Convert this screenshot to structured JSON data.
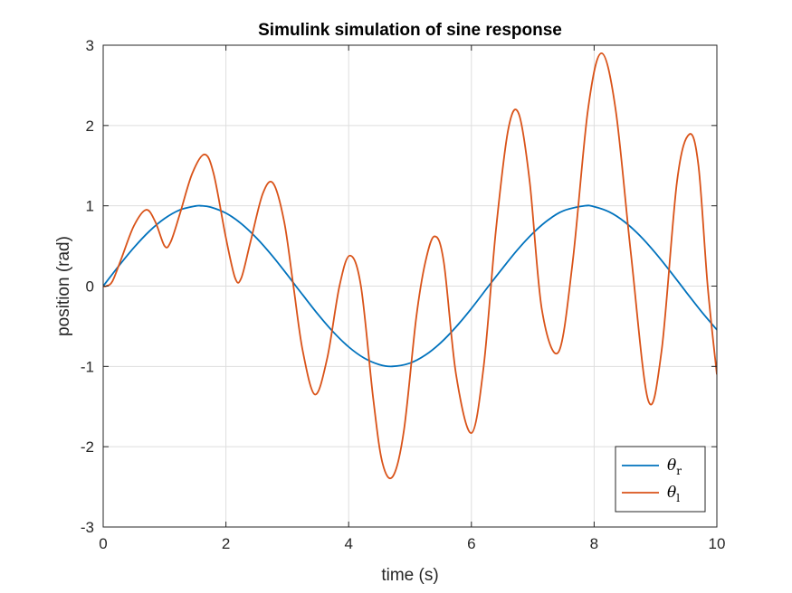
{
  "chart_data": {
    "type": "line",
    "title": "Simulink simulation of sine response",
    "xlabel": "time (s)",
    "ylabel": "position (rad)",
    "xlim": [
      0,
      10
    ],
    "ylim": [
      -3,
      3
    ],
    "xticks": [
      0,
      2,
      4,
      6,
      8,
      10
    ],
    "yticks": [
      -3,
      -2,
      -1,
      0,
      1,
      2,
      3
    ],
    "grid": true,
    "legend_position": "bottom-right",
    "series": [
      {
        "name": "θr",
        "legend_symbol": "θ",
        "legend_subscript": "r",
        "color": "#0072BD",
        "x": [
          0,
          0.25,
          0.5,
          0.75,
          1,
          1.25,
          1.5,
          1.6,
          1.75,
          2,
          2.25,
          2.5,
          2.75,
          3,
          3.14,
          3.25,
          3.5,
          3.75,
          4,
          4.25,
          4.5,
          4.71,
          5,
          5.25,
          5.5,
          5.75,
          6,
          6.28,
          6.5,
          6.75,
          7,
          7.25,
          7.5,
          7.85,
          8,
          8.25,
          8.5,
          8.75,
          9,
          9.25,
          9.5,
          9.75,
          10
        ],
        "y": [
          0,
          0.247,
          0.479,
          0.682,
          0.841,
          0.949,
          0.997,
          1.0,
          0.984,
          0.909,
          0.778,
          0.598,
          0.382,
          0.141,
          0.0,
          -0.108,
          -0.351,
          -0.572,
          -0.757,
          -0.895,
          -0.978,
          -1.0,
          -0.959,
          -0.859,
          -0.706,
          -0.508,
          -0.279,
          0.0,
          0.215,
          0.451,
          0.657,
          0.823,
          0.938,
          1.0,
          0.989,
          0.922,
          0.798,
          0.625,
          0.412,
          0.174,
          -0.075,
          -0.319,
          -0.544
        ]
      },
      {
        "name": "θl",
        "legend_symbol": "θ",
        "legend_subscript": "l",
        "color": "#D95319",
        "x": [
          0,
          0.05,
          0.15,
          0.3,
          0.5,
          0.7,
          0.85,
          1.0,
          1.1,
          1.25,
          1.45,
          1.65,
          1.8,
          2.0,
          2.15,
          2.25,
          2.4,
          2.6,
          2.77,
          2.95,
          3.1,
          3.25,
          3.45,
          3.65,
          3.85,
          4.02,
          4.2,
          4.4,
          4.55,
          4.72,
          4.9,
          5.1,
          5.25,
          5.4,
          5.55,
          5.75,
          6.0,
          6.2,
          6.4,
          6.6,
          6.77,
          6.95,
          7.15,
          7.42,
          7.65,
          7.9,
          8.12,
          8.35,
          8.6,
          8.88,
          9.1,
          9.35,
          9.55,
          9.7,
          9.85,
          10.0
        ],
        "y": [
          0,
          0.0,
          0.06,
          0.35,
          0.75,
          0.95,
          0.8,
          0.5,
          0.55,
          0.9,
          1.4,
          1.64,
          1.4,
          0.6,
          0.1,
          0.1,
          0.55,
          1.15,
          1.28,
          0.8,
          0.0,
          -0.8,
          -1.35,
          -0.9,
          0.0,
          0.38,
          0.0,
          -1.4,
          -2.2,
          -2.37,
          -1.8,
          -0.4,
          0.3,
          0.62,
          0.3,
          -1.1,
          -1.83,
          -1.0,
          0.7,
          1.95,
          2.15,
          1.3,
          -0.3,
          -0.82,
          0.3,
          2.2,
          2.9,
          2.2,
          0.4,
          -1.42,
          -0.8,
          1.3,
          1.89,
          1.5,
          0.0,
          -1.1
        ]
      }
    ]
  }
}
